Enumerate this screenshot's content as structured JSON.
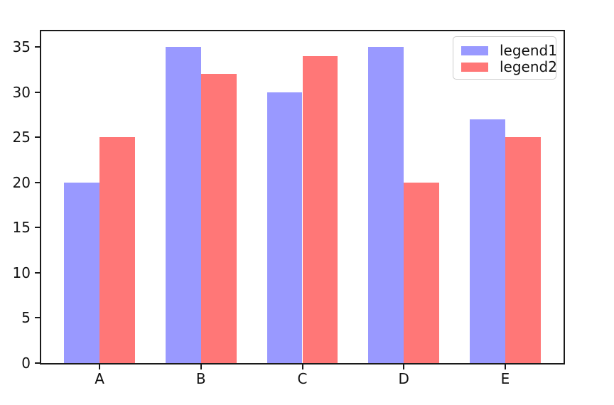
{
  "chart_data": {
    "type": "bar",
    "title": "",
    "xlabel": "",
    "ylabel": "",
    "categories": [
      "A",
      "B",
      "C",
      "D",
      "E"
    ],
    "series": [
      {
        "name": "legend1",
        "color": "#9999ff",
        "values": [
          20,
          35,
          30,
          35,
          27
        ]
      },
      {
        "name": "legend2",
        "color": "#ff7777",
        "values": [
          25,
          32,
          34,
          20,
          25
        ]
      }
    ],
    "yticks": [
      0,
      5,
      10,
      15,
      20,
      25,
      30,
      35
    ],
    "ylim": [
      0,
      36.75
    ],
    "x_range": [
      -0.575,
      4.575
    ],
    "bar_width_data_units": 0.35,
    "grid": false,
    "legend_position": "upper right",
    "background_color": "#ffffff",
    "spine_color": "#1a1a1a"
  }
}
